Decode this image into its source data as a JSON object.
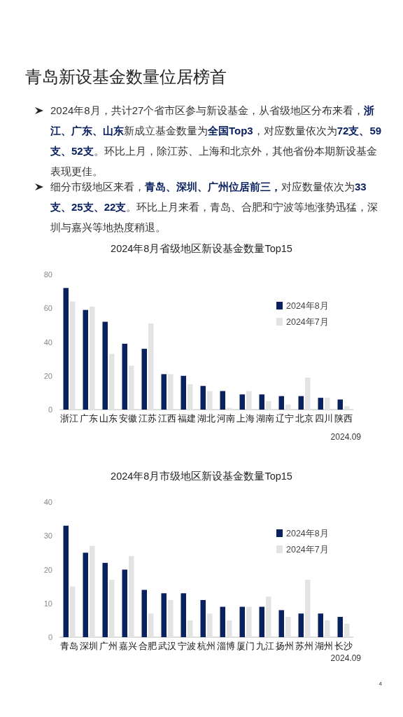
{
  "chart_data": [
    {
      "type": "bar",
      "title": "2024年8月省级地区新设基金数量Top15",
      "categories": [
        "浙江",
        "广东",
        "山东",
        "安徽",
        "江苏",
        "江西",
        "福建",
        "湖北",
        "河南",
        "上海",
        "湖南",
        "辽宁",
        "北京",
        "四川",
        "陕西"
      ],
      "series": [
        {
          "name": "2024年8月",
          "color": "#0a2160",
          "values": [
            72,
            59,
            52,
            39,
            36,
            21,
            20,
            14,
            11,
            9,
            9,
            8,
            8,
            7,
            6
          ]
        },
        {
          "name": "2024年7月",
          "color": "#e3e3e3",
          "values": [
            64,
            61,
            33,
            26,
            51,
            21,
            15,
            11,
            1,
            11,
            5,
            3,
            19,
            7,
            2
          ]
        }
      ],
      "ylim": [
        0,
        80
      ],
      "yticks": [
        0,
        20,
        40,
        60,
        80
      ],
      "legend": "right",
      "annotations": [
        "青岛新设基金数量位居榜首",
        "2024年8月，共计27个省市区参与新设基金，从省级地区分布来看，**浙江、广东、山东**新成立基金数量为**全国Top3**，对应数量依次为**72支、59支、52支**。环比上月，除江苏、上海和北京外，其他省份本期新设基金表现更佳。",
        "细分市级地区来看，**青岛、深圳、广州位居前三，**对应数量依次为**33支、25支、22支**。环比上月来看，青岛、合肥和宁波等地涨势迅猛，深圳与嘉兴等地热度稍退。",
        "2024.09"
      ]
    },
    {
      "type": "bar",
      "title": "2024年8月市级地区新设基金数量Top15",
      "categories": [
        "青岛",
        "深圳",
        "广州",
        "嘉兴",
        "合肥",
        "武汉",
        "宁波",
        "杭州",
        "淄博",
        "厦门",
        "九江",
        "扬州",
        "苏州",
        "湖州",
        "长沙"
      ],
      "series": [
        {
          "name": "2024年8月",
          "color": "#0a2160",
          "values": [
            33,
            25,
            22,
            20,
            14,
            13,
            13,
            11,
            9,
            9,
            9,
            8,
            7,
            7,
            6
          ]
        },
        {
          "name": "2024年7月",
          "color": "#e3e3e3",
          "values": [
            15,
            27,
            17,
            24,
            7,
            11,
            5,
            7,
            5,
            9,
            12,
            6,
            17,
            5,
            4
          ]
        }
      ],
      "ylim": [
        0,
        40
      ],
      "yticks": [
        0,
        10,
        20,
        30,
        40
      ],
      "legend": "right",
      "annotations": [
        "2024.09",
        "4"
      ]
    }
  ]
}
